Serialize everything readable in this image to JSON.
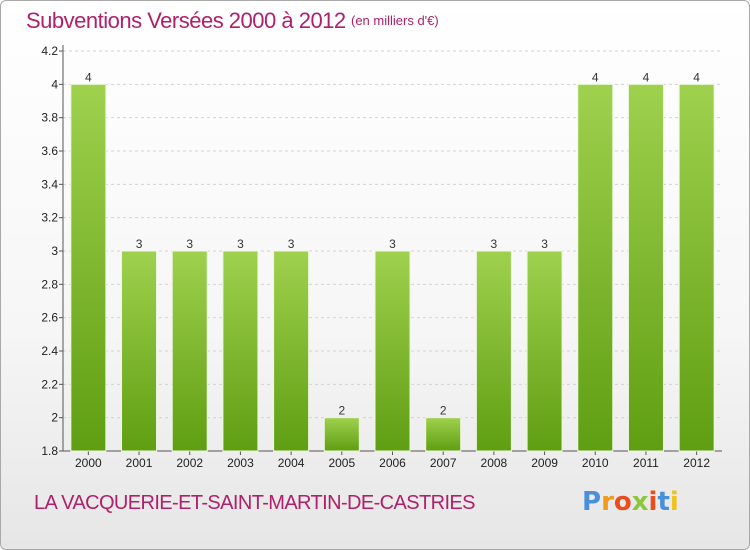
{
  "header": {
    "title": "Subventions Versées 2000 à 2012",
    "unit": "(en milliers d'€)"
  },
  "footer": {
    "commune": "LA VACQUERIE-ET-SAINT-MARTIN-DE-CASTRIES",
    "logo_letters": [
      "P",
      "r",
      "o",
      "x",
      "i",
      "t",
      "i"
    ],
    "logo_colors": [
      "#4a90d9",
      "#f29a1c",
      "#e94e1b",
      "#8cc63f",
      "#e94e1b",
      "#4a90d9",
      "#f2c21c"
    ]
  },
  "chart_data": {
    "type": "bar",
    "title": "Subventions Versées 2000 à 2012",
    "xlabel": "",
    "ylabel": "",
    "categories": [
      "2000",
      "2001",
      "2002",
      "2003",
      "2004",
      "2005",
      "2006",
      "2007",
      "2008",
      "2009",
      "2010",
      "2011",
      "2012"
    ],
    "values": [
      4,
      3,
      3,
      3,
      3,
      2,
      3,
      2,
      3,
      3,
      4,
      4,
      4
    ],
    "value_labels": [
      "4",
      "3",
      "3",
      "3",
      "3",
      "2",
      "3",
      "2",
      "3",
      "3",
      "4",
      "4",
      "4"
    ],
    "yticks": [
      1.8,
      2,
      2.2,
      2.4,
      2.6,
      2.8,
      3,
      3.2,
      3.4,
      3.6,
      3.8,
      4,
      4.2
    ],
    "ytick_labels": [
      "1.8",
      "2",
      "2.2",
      "2.4",
      "2.6",
      "2.8",
      "3",
      "3.2",
      "3.4",
      "3.6",
      "3.8",
      "4",
      "4.2"
    ],
    "ylim": [
      1.8,
      4.2
    ],
    "grid": true,
    "bar_color_top": "#9fd14e",
    "bar_color_bottom": "#5f9e12"
  }
}
